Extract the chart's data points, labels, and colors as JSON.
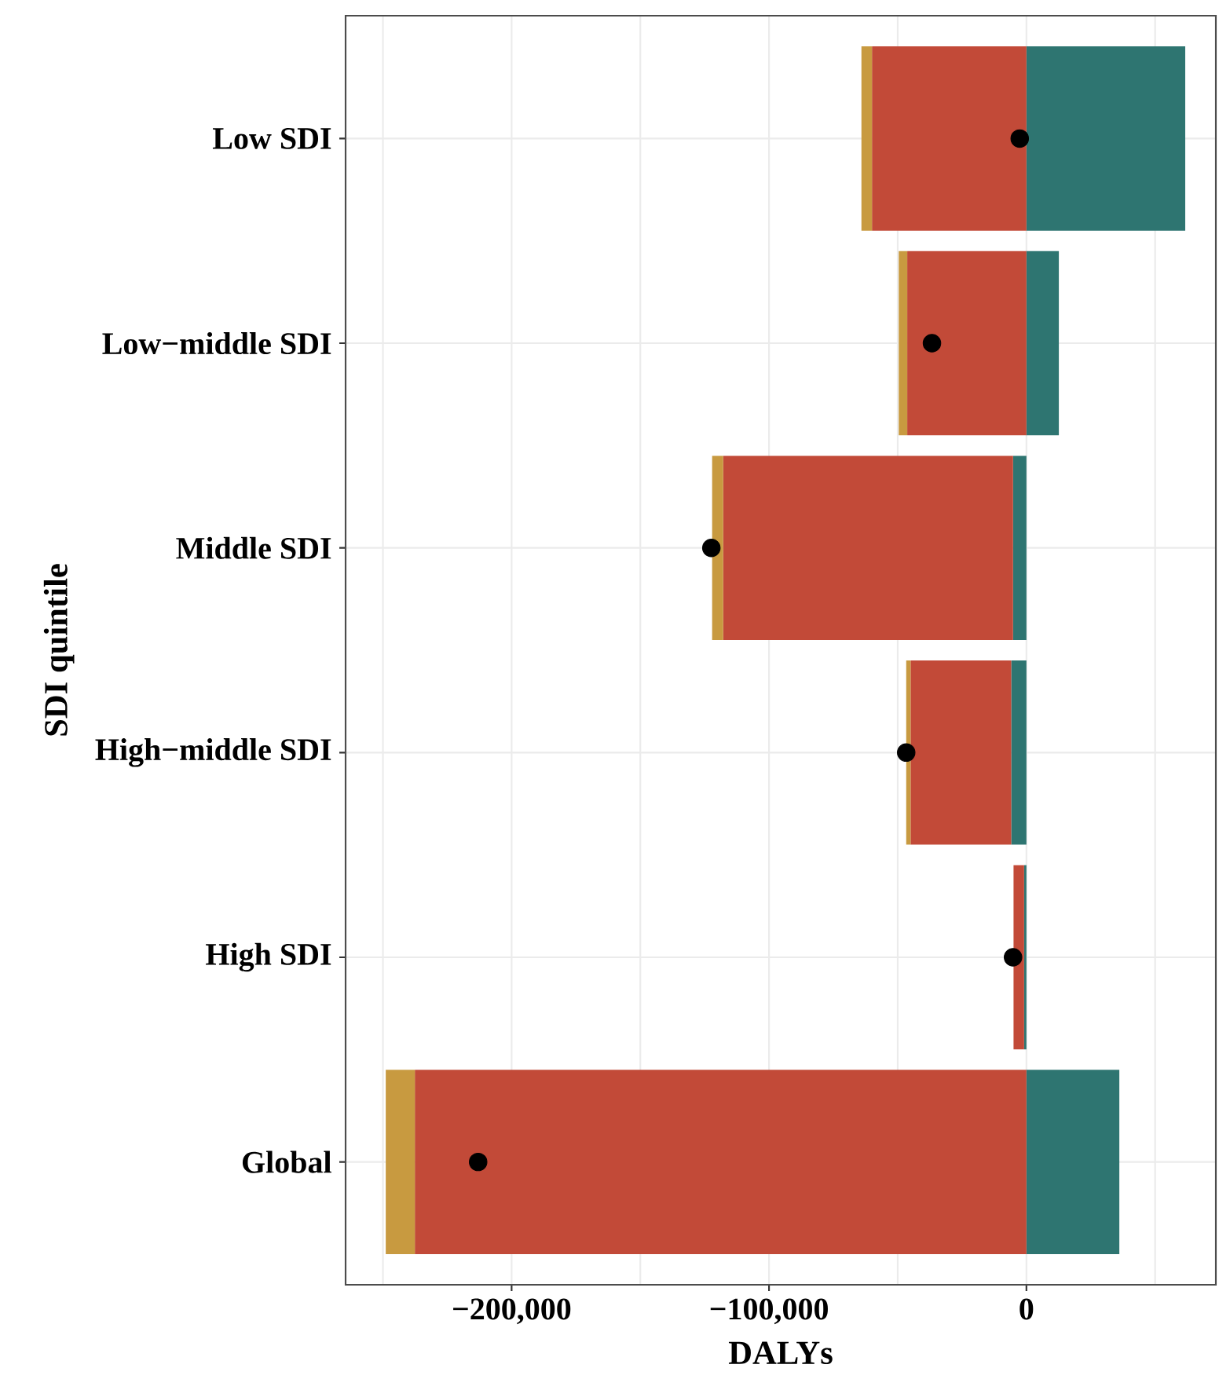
{
  "chart_data": {
    "type": "bar",
    "orientation": "horizontal",
    "stacked": true,
    "xlabel": "DALYs",
    "ylabel": "SDI quintile",
    "categories": [
      "Low SDI",
      "Low−middle SDI",
      "Middle SDI",
      "High−middle SDI",
      "High SDI",
      "Global"
    ],
    "series": [
      {
        "color": "#2e7571",
        "values": [
          61700,
          12600,
          -5200,
          -5900,
          -900,
          36100
        ]
      },
      {
        "color": "#c24a38",
        "values": [
          -60000,
          -46300,
          -112600,
          -39100,
          -4100,
          -237600
        ]
      },
      {
        "color": "#c89a40",
        "values": [
          -4100,
          -3300,
          -4300,
          -1700,
          null,
          -11300
        ]
      },
      {
        "type": "scatter",
        "marker": "circle",
        "color": "#000000",
        "values": [
          -2600,
          -36700,
          -122400,
          -46700,
          -5200,
          -213000
        ]
      }
    ],
    "xlim": [
      -264500,
      73600
    ],
    "xticks": [
      {
        "value": -250000,
        "label": null
      },
      {
        "value": -200000,
        "label": "−200,000"
      },
      {
        "value": -150000,
        "label": null
      },
      {
        "value": -100000,
        "label": "−100,000"
      },
      {
        "value": -50000,
        "label": null
      },
      {
        "value": 0,
        "label": "0"
      },
      {
        "value": 50000,
        "label": null
      }
    ],
    "grid": true
  }
}
